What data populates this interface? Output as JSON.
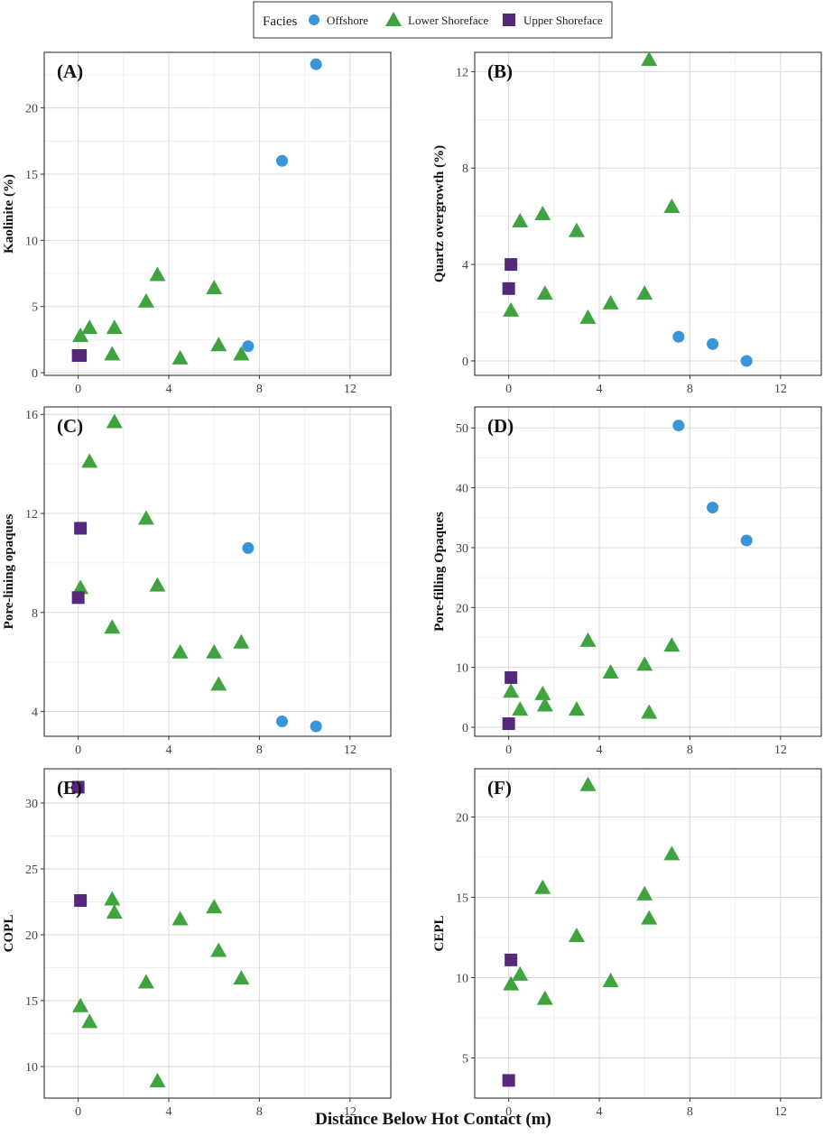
{
  "legend": {
    "title": "Facies",
    "items": [
      {
        "name": "Offshore",
        "color": "#3a94d8",
        "marker": "circle"
      },
      {
        "name": "Lower Shoreface",
        "color": "#3fa33f",
        "marker": "triangle"
      },
      {
        "name": "Upper Shoreface",
        "color": "#55287a",
        "marker": "square"
      }
    ]
  },
  "shared_xlabel": "Distance Below Hot Contact (m)",
  "chart_data": [
    {
      "type": "scatter",
      "panel_label": "(A)",
      "ylabel": "Kaolinite (%)",
      "xlim": [
        -1.5,
        13.8
      ],
      "ylim": [
        -0.2,
        24.2
      ],
      "xticks": [
        0,
        4,
        8,
        12
      ],
      "yticks": [
        0,
        5,
        10,
        15,
        20
      ],
      "series": [
        {
          "name": "Offshore",
          "points": [
            [
              7.5,
              2.0
            ],
            [
              9.0,
              16.0
            ],
            [
              10.5,
              23.3
            ]
          ]
        },
        {
          "name": "Lower Shoreface",
          "points": [
            [
              0.1,
              2.8
            ],
            [
              0.5,
              3.4
            ],
            [
              1.5,
              1.4
            ],
            [
              1.6,
              3.4
            ],
            [
              3.0,
              5.4
            ],
            [
              3.5,
              7.4
            ],
            [
              4.5,
              1.1
            ],
            [
              6.0,
              6.4
            ],
            [
              6.2,
              2.1
            ],
            [
              7.2,
              1.4
            ]
          ]
        },
        {
          "name": "Upper Shoreface",
          "points": [
            [
              0.0,
              1.3
            ],
            [
              0.1,
              1.3
            ]
          ]
        }
      ]
    },
    {
      "type": "scatter",
      "panel_label": "(B)",
      "ylabel": "Quartz overgrowth (%)",
      "xlim": [
        -1.5,
        13.8
      ],
      "ylim": [
        -0.6,
        12.8
      ],
      "xticks": [
        0,
        4,
        8,
        12
      ],
      "yticks": [
        0,
        4,
        8,
        12
      ],
      "series": [
        {
          "name": "Offshore",
          "points": [
            [
              7.5,
              1.0
            ],
            [
              9.0,
              0.7
            ],
            [
              10.5,
              0.0
            ]
          ]
        },
        {
          "name": "Lower Shoreface",
          "points": [
            [
              0.1,
              2.1
            ],
            [
              0.5,
              5.8
            ],
            [
              1.5,
              6.1
            ],
            [
              1.6,
              2.8
            ],
            [
              3.0,
              5.4
            ],
            [
              3.5,
              1.8
            ],
            [
              4.5,
              2.4
            ],
            [
              6.0,
              2.8
            ],
            [
              6.2,
              12.5
            ],
            [
              7.2,
              6.4
            ]
          ]
        },
        {
          "name": "Upper Shoreface",
          "points": [
            [
              0.0,
              3.0
            ],
            [
              0.1,
              4.0
            ]
          ]
        }
      ]
    },
    {
      "type": "scatter",
      "panel_label": "(C)",
      "ylabel": "Pore-lining opaques",
      "xlim": [
        -1.5,
        13.8
      ],
      "ylim": [
        3.0,
        16.3
      ],
      "xticks": [
        0,
        4,
        8,
        12
      ],
      "yticks": [
        4,
        8,
        12,
        16
      ],
      "series": [
        {
          "name": "Offshore",
          "points": [
            [
              7.5,
              10.6
            ],
            [
              9.0,
              3.6
            ],
            [
              10.5,
              3.4
            ]
          ]
        },
        {
          "name": "Lower Shoreface",
          "points": [
            [
              0.1,
              9.0
            ],
            [
              0.5,
              14.1
            ],
            [
              1.5,
              7.4
            ],
            [
              1.6,
              15.7
            ],
            [
              3.0,
              11.8
            ],
            [
              3.5,
              9.1
            ],
            [
              4.5,
              6.4
            ],
            [
              6.0,
              6.4
            ],
            [
              6.2,
              5.1
            ],
            [
              7.2,
              6.8
            ]
          ]
        },
        {
          "name": "Upper Shoreface",
          "points": [
            [
              0.0,
              8.6
            ],
            [
              0.1,
              11.4
            ]
          ]
        }
      ]
    },
    {
      "type": "scatter",
      "panel_label": "(D)",
      "ylabel": "Pore-filling Opaques",
      "xlim": [
        -1.5,
        13.8
      ],
      "ylim": [
        -1.5,
        53.5
      ],
      "xticks": [
        0,
        4,
        8,
        12
      ],
      "yticks": [
        0,
        10,
        20,
        30,
        40,
        50
      ],
      "series": [
        {
          "name": "Offshore",
          "points": [
            [
              7.5,
              50.4
            ],
            [
              9.0,
              36.7
            ],
            [
              10.5,
              31.2
            ]
          ]
        },
        {
          "name": "Lower Shoreface",
          "points": [
            [
              0.1,
              6.0
            ],
            [
              0.5,
              3.0
            ],
            [
              1.5,
              5.6
            ],
            [
              1.6,
              3.7
            ],
            [
              3.0,
              3.0
            ],
            [
              3.5,
              14.5
            ],
            [
              4.5,
              9.2
            ],
            [
              6.0,
              10.5
            ],
            [
              6.2,
              2.5
            ],
            [
              7.2,
              13.7
            ]
          ]
        },
        {
          "name": "Upper Shoreface",
          "points": [
            [
              0.0,
              0.6
            ],
            [
              0.1,
              8.3
            ]
          ]
        }
      ]
    },
    {
      "type": "scatter",
      "panel_label": "(E)",
      "ylabel": "COPL",
      "xlim": [
        -1.5,
        13.8
      ],
      "ylim": [
        7.6,
        32.6
      ],
      "xticks": [
        0,
        4,
        8,
        12
      ],
      "yticks": [
        10,
        15,
        20,
        25,
        30
      ],
      "series": [
        {
          "name": "Offshore",
          "points": []
        },
        {
          "name": "Lower Shoreface",
          "points": [
            [
              0.1,
              14.6
            ],
            [
              0.5,
              13.4
            ],
            [
              1.5,
              22.7
            ],
            [
              1.6,
              21.7
            ],
            [
              3.0,
              16.4
            ],
            [
              3.5,
              8.9
            ],
            [
              4.5,
              21.2
            ],
            [
              6.0,
              22.1
            ],
            [
              6.2,
              18.8
            ],
            [
              7.2,
              16.7
            ]
          ]
        },
        {
          "name": "Upper Shoreface",
          "points": [
            [
              0.0,
              31.2
            ],
            [
              0.1,
              22.6
            ]
          ]
        }
      ]
    },
    {
      "type": "scatter",
      "panel_label": "(F)",
      "ylabel": "CEPL",
      "xlim": [
        -1.5,
        13.8
      ],
      "ylim": [
        2.5,
        23.0
      ],
      "xticks": [
        0,
        4,
        8,
        12
      ],
      "yticks": [
        5,
        10,
        15,
        20
      ],
      "series": [
        {
          "name": "Offshore",
          "points": []
        },
        {
          "name": "Lower Shoreface",
          "points": [
            [
              0.1,
              9.6
            ],
            [
              0.5,
              10.2
            ],
            [
              1.5,
              15.6
            ],
            [
              1.6,
              8.7
            ],
            [
              3.0,
              12.6
            ],
            [
              3.5,
              22.0
            ],
            [
              4.5,
              9.8
            ],
            [
              6.0,
              15.2
            ],
            [
              6.2,
              13.7
            ],
            [
              7.2,
              17.7
            ]
          ]
        },
        {
          "name": "Upper Shoreface",
          "points": [
            [
              0.0,
              3.6
            ],
            [
              0.1,
              11.1
            ]
          ]
        }
      ]
    }
  ]
}
